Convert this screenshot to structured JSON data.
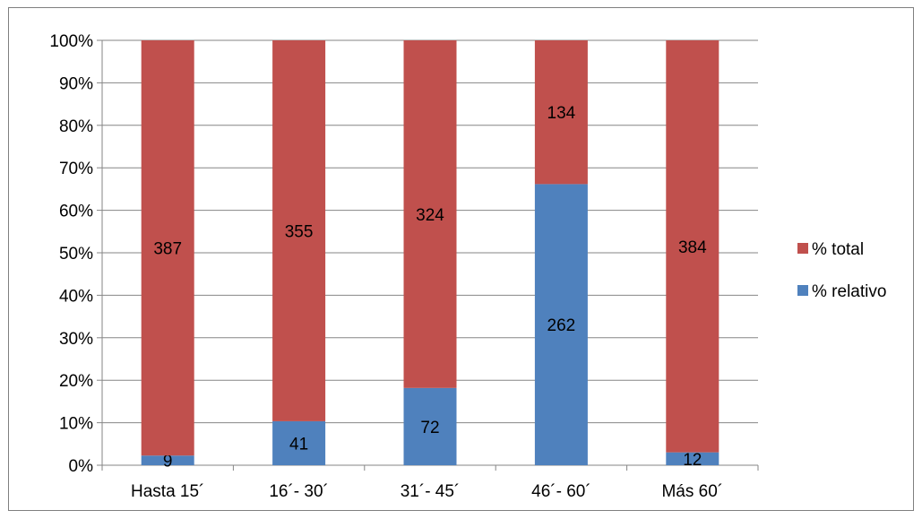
{
  "chart_data": {
    "type": "bar",
    "stacked": "percent",
    "title": "",
    "xlabel": "",
    "ylabel": "",
    "categories": [
      "Hasta 15´",
      "16´- 30´",
      "31´- 45´",
      "46´- 60´",
      "Más 60´"
    ],
    "series": [
      {
        "name": "% relativo",
        "values": [
          9,
          41,
          72,
          262,
          12
        ],
        "color": "#4f81bd"
      },
      {
        "name": "% total",
        "values": [
          387,
          355,
          324,
          134,
          384
        ],
        "color": "#c0504d"
      }
    ],
    "ylim": [
      0,
      1
    ],
    "yticks": [
      "0%",
      "10%",
      "20%",
      "30%",
      "40%",
      "50%",
      "60%",
      "70%",
      "80%",
      "90%",
      "100%"
    ],
    "grid": true,
    "legend_position": "right",
    "legend_order": [
      "% total",
      "% relativo"
    ]
  }
}
